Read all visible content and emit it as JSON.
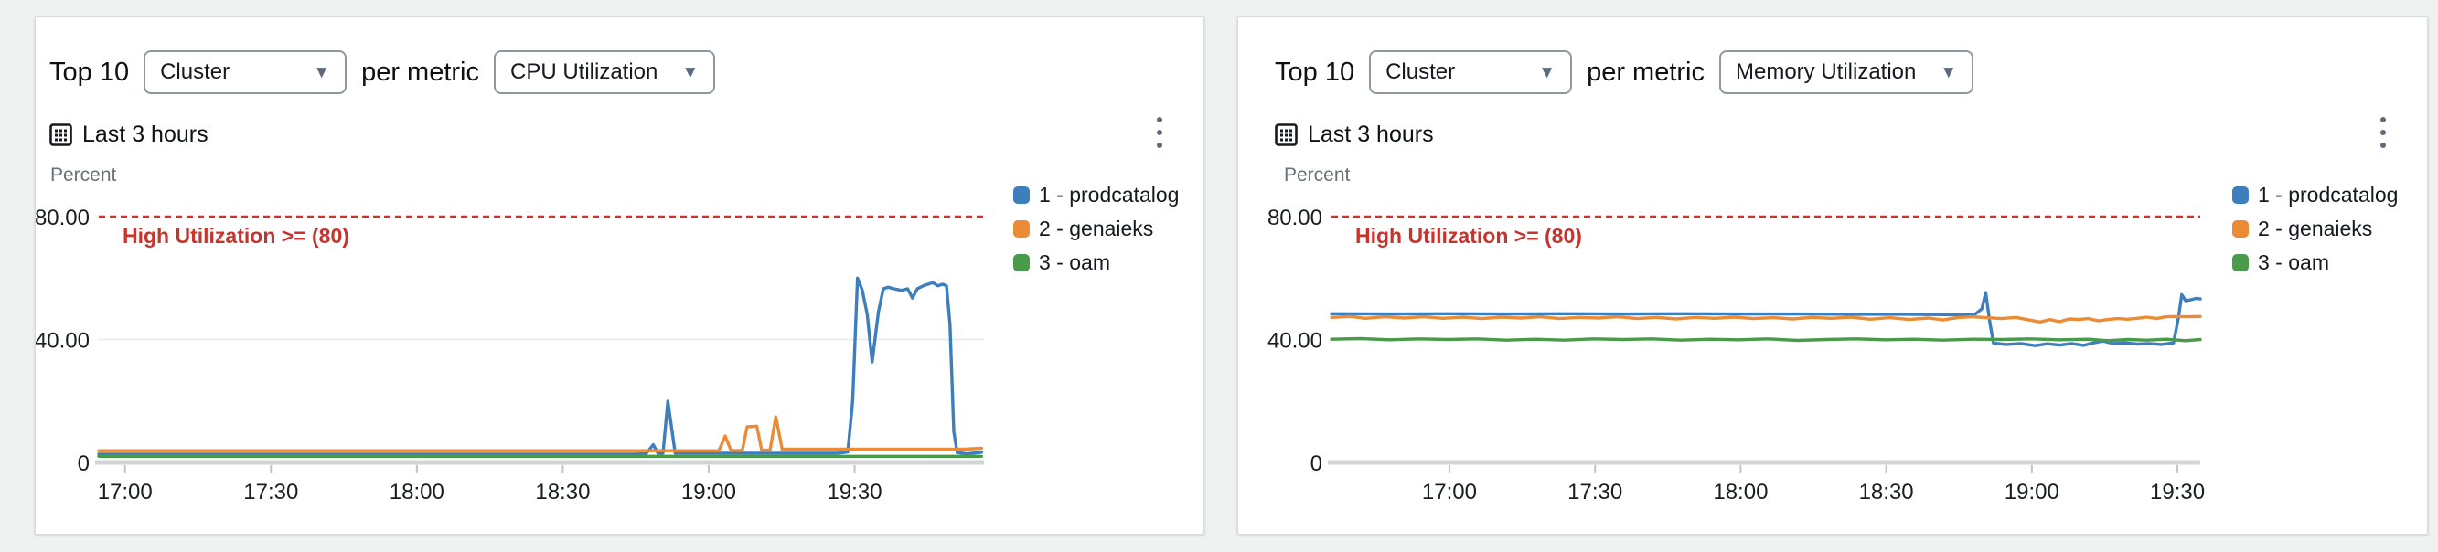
{
  "icons": {
    "caret_down": "▼"
  },
  "panels": [
    {
      "title_prefix": "Top 10",
      "dimension_select": "Cluster",
      "metric_phrase": "per metric",
      "metric_select": "CPU Utilization",
      "time_range_label": "Last 3 hours",
      "y_axis_label": "Percent"
    },
    {
      "title_prefix": "Top 10",
      "dimension_select": "Cluster",
      "metric_phrase": "per metric",
      "metric_select": "Memory Utilization",
      "time_range_label": "Last 3 hours",
      "y_axis_label": "Percent"
    }
  ],
  "chart_data": [
    {
      "type": "line",
      "title": "Top 10 Cluster per metric CPU Utilization",
      "ylabel": "Percent",
      "ylim": [
        0,
        88
      ],
      "grid": "horizontal-light",
      "legend_position": "right-top",
      "y_ticks": [
        {
          "value": 80,
          "label": "80.00"
        },
        {
          "value": 40,
          "label": "40.00"
        },
        {
          "value": 0,
          "label": "0"
        }
      ],
      "x_window_minutes": 182,
      "x_ticks": [
        {
          "offset": 5.4,
          "label": "17:00"
        },
        {
          "offset": 35.4,
          "label": "17:30"
        },
        {
          "offset": 65.4,
          "label": "18:00"
        },
        {
          "offset": 95.4,
          "label": "18:30"
        },
        {
          "offset": 125.4,
          "label": "19:00"
        },
        {
          "offset": 155.4,
          "label": "19:30"
        }
      ],
      "threshold": {
        "value": 80,
        "label": "High Utilization >= (80)",
        "color": "#c7332d"
      },
      "series": [
        {
          "name": "1 - prodcatalog",
          "color": "#3d7ebd",
          "points": [
            [
              0,
              2.7
            ],
            [
              25,
              2.7
            ],
            [
              50,
              2.7
            ],
            [
              75,
              2.7
            ],
            [
              100,
              2.7
            ],
            [
              110,
              2.7
            ],
            [
              112.5,
              2.8
            ],
            [
              114,
              5.8
            ],
            [
              115,
              2.9
            ],
            [
              116,
              3
            ],
            [
              117,
              20
            ],
            [
              118.5,
              3
            ],
            [
              130,
              3
            ],
            [
              145,
              3
            ],
            [
              152,
              3
            ],
            [
              154,
              3.4
            ],
            [
              155,
              20
            ],
            [
              156,
              60
            ],
            [
              157,
              56
            ],
            [
              158,
              48
            ],
            [
              159,
              32.7
            ],
            [
              160.3,
              49
            ],
            [
              161.3,
              56.5
            ],
            [
              162.3,
              57
            ],
            [
              163.5,
              56.5
            ],
            [
              165,
              56
            ],
            [
              166.3,
              56.5
            ],
            [
              167.3,
              53.5
            ],
            [
              168.3,
              56.5
            ],
            [
              169.5,
              57.5
            ],
            [
              170.5,
              58
            ],
            [
              171.5,
              58.5
            ],
            [
              172.5,
              57.5
            ],
            [
              173.5,
              58
            ],
            [
              174.3,
              57.5
            ],
            [
              175,
              45
            ],
            [
              175.8,
              10
            ],
            [
              176.5,
              3.2
            ],
            [
              178.5,
              2.8
            ],
            [
              181.5,
              3.3
            ]
          ]
        },
        {
          "name": "2 - genaieks",
          "color": "#eb8b36",
          "points": [
            [
              0,
              3.8
            ],
            [
              30,
              3.8
            ],
            [
              60,
              3.8
            ],
            [
              90,
              3.8
            ],
            [
              110,
              3.8
            ],
            [
              122,
              3.8
            ],
            [
              127.5,
              3.8
            ],
            [
              128.8,
              8.6
            ],
            [
              130,
              3.9
            ],
            [
              132.3,
              3.9
            ],
            [
              133.3,
              11.6
            ],
            [
              135.3,
              11.8
            ],
            [
              136.3,
              4
            ],
            [
              138,
              4
            ],
            [
              139.2,
              14.8
            ],
            [
              140.5,
              4.3
            ],
            [
              150,
              4.3
            ],
            [
              160,
              4.3
            ],
            [
              170,
              4.3
            ],
            [
              178,
              4.3
            ],
            [
              181.5,
              4.6
            ]
          ]
        },
        {
          "name": "3 - oam",
          "color": "#4a9b49",
          "points": [
            [
              0,
              2
            ],
            [
              30,
              2
            ],
            [
              60,
              2
            ],
            [
              90,
              2
            ],
            [
              120,
              2
            ],
            [
              150,
              2
            ],
            [
              181.5,
              2
            ]
          ]
        }
      ]
    },
    {
      "type": "line",
      "title": "Top 10 Cluster per metric Memory Utilization",
      "ylabel": "Percent",
      "ylim": [
        0,
        88
      ],
      "grid": "horizontal-light",
      "legend_position": "right-top",
      "y_ticks": [
        {
          "value": 80,
          "label": "80.00"
        },
        {
          "value": 40,
          "label": "40.00"
        },
        {
          "value": 0,
          "label": "0"
        }
      ],
      "x_window_minutes": 179,
      "x_ticks": [
        {
          "offset": 24.3,
          "label": "17:00"
        },
        {
          "offset": 54.3,
          "label": "17:30"
        },
        {
          "offset": 84.3,
          "label": "18:00"
        },
        {
          "offset": 114.3,
          "label": "18:30"
        },
        {
          "offset": 144.3,
          "label": "19:00"
        },
        {
          "offset": 174.3,
          "label": "19:30"
        }
      ],
      "threshold": {
        "value": 80,
        "label": "High Utilization >= (80)",
        "color": "#c7332d"
      },
      "series": [
        {
          "name": "1 - prodcatalog",
          "color": "#3d7ebd",
          "points": [
            [
              0,
              48.4
            ],
            [
              12,
              48.3
            ],
            [
              24,
              48.4
            ],
            [
              36,
              48.3
            ],
            [
              48,
              48.4
            ],
            [
              60,
              48.3
            ],
            [
              72,
              48.4
            ],
            [
              84,
              48.3
            ],
            [
              96,
              48.3
            ],
            [
              108,
              48.2
            ],
            [
              118,
              48.2
            ],
            [
              126,
              48.1
            ],
            [
              130,
              48
            ],
            [
              132.5,
              48.1
            ],
            [
              134,
              50
            ],
            [
              134.8,
              55.3
            ],
            [
              135.6,
              46
            ],
            [
              136.4,
              38.8
            ],
            [
              139,
              38.4
            ],
            [
              142,
              38.7
            ],
            [
              145,
              38
            ],
            [
              147.5,
              38.6
            ],
            [
              150,
              38.2
            ],
            [
              152.5,
              38.7
            ],
            [
              155,
              38.1
            ],
            [
              157,
              38.9
            ],
            [
              159,
              39.5
            ],
            [
              161,
              38.7
            ],
            [
              163.5,
              38.9
            ],
            [
              166,
              38.5
            ],
            [
              168.5,
              38.7
            ],
            [
              171,
              38.4
            ],
            [
              173.5,
              38.9
            ],
            [
              174.5,
              47
            ],
            [
              175.2,
              54.6
            ],
            [
              176,
              52.6
            ],
            [
              177,
              52.9
            ],
            [
              178.2,
              53.4
            ],
            [
              179,
              53.2
            ]
          ]
        },
        {
          "name": "2 - genaieks",
          "color": "#eb8b36",
          "points": [
            [
              0,
              47.2
            ],
            [
              4,
              47.5
            ],
            [
              7,
              46.9
            ],
            [
              11,
              47.4
            ],
            [
              15,
              47
            ],
            [
              19,
              47.4
            ],
            [
              23,
              46.9
            ],
            [
              27,
              47.3
            ],
            [
              31,
              46.8
            ],
            [
              35,
              47.3
            ],
            [
              39,
              47
            ],
            [
              43,
              47.4
            ],
            [
              47,
              46.8
            ],
            [
              51,
              47.2
            ],
            [
              55,
              47
            ],
            [
              59,
              47.4
            ],
            [
              63,
              46.8
            ],
            [
              67,
              47.2
            ],
            [
              71,
              46.7
            ],
            [
              75,
              47.2
            ],
            [
              79,
              46.9
            ],
            [
              83,
              47.3
            ],
            [
              87,
              46.8
            ],
            [
              91,
              47.1
            ],
            [
              95,
              46.7
            ],
            [
              99,
              47.2
            ],
            [
              103,
              46.9
            ],
            [
              107,
              47.3
            ],
            [
              111,
              46.6
            ],
            [
              115,
              47.1
            ],
            [
              119,
              46.5
            ],
            [
              123,
              47
            ],
            [
              126,
              46.4
            ],
            [
              129,
              47.1
            ],
            [
              132,
              47.4
            ],
            [
              135,
              47.1
            ],
            [
              138,
              46.8
            ],
            [
              141,
              47.2
            ],
            [
              144,
              46.3
            ],
            [
              146,
              45.7
            ],
            [
              148,
              46.5
            ],
            [
              150,
              45.8
            ],
            [
              152,
              46.7
            ],
            [
              154,
              46.5
            ],
            [
              156,
              46.8
            ],
            [
              158,
              46.1
            ],
            [
              160,
              46.5
            ],
            [
              162,
              46.8
            ],
            [
              164,
              46.6
            ],
            [
              166,
              46.9
            ],
            [
              168,
              47.3
            ],
            [
              170,
              46.8
            ],
            [
              172,
              47.4
            ],
            [
              174,
              47.5
            ],
            [
              176,
              47.4
            ],
            [
              179,
              47.5
            ]
          ]
        },
        {
          "name": "3 - oam",
          "color": "#4a9b49",
          "points": [
            [
              0,
              40.1
            ],
            [
              6,
              40.3
            ],
            [
              12,
              39.9
            ],
            [
              18,
              40.2
            ],
            [
              24,
              40
            ],
            [
              30,
              40.2
            ],
            [
              36,
              39.8
            ],
            [
              42,
              40.1
            ],
            [
              48,
              39.8
            ],
            [
              54,
              40.2
            ],
            [
              60,
              40
            ],
            [
              66,
              40.2
            ],
            [
              72,
              39.8
            ],
            [
              78,
              40.1
            ],
            [
              84,
              39.9
            ],
            [
              90,
              40.2
            ],
            [
              96,
              39.7
            ],
            [
              102,
              40
            ],
            [
              108,
              40.2
            ],
            [
              114,
              39.9
            ],
            [
              120,
              40.1
            ],
            [
              126,
              39.8
            ],
            [
              132,
              40.1
            ],
            [
              138,
              40
            ],
            [
              144,
              40.2
            ],
            [
              150,
              39.9
            ],
            [
              156,
              40.1
            ],
            [
              160,
              39.6
            ],
            [
              164,
              40
            ],
            [
              168,
              39.8
            ],
            [
              172,
              40.1
            ],
            [
              176,
              39.6
            ],
            [
              179,
              40
            ]
          ]
        }
      ]
    }
  ]
}
